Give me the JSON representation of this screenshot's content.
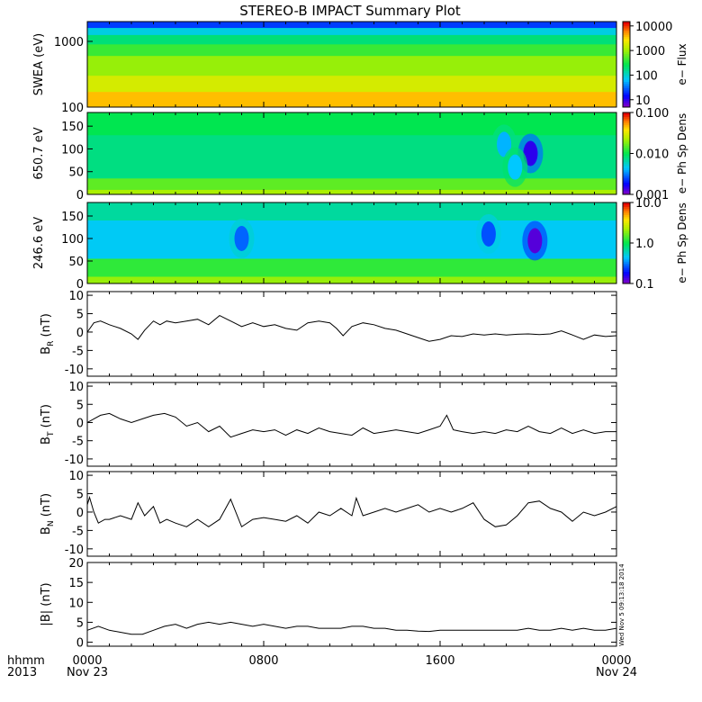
{
  "title": "STEREO-B IMPACT Summary Plot",
  "stamp": "Wed Nov 5 09:13:18 2014",
  "time_axis": {
    "corner_top": "hhmm",
    "corner_bottom": "2013",
    "ticks": [
      {
        "hour": 0,
        "label": "0000",
        "sublabel": "Nov 23"
      },
      {
        "hour": 8,
        "label": "0800",
        "sublabel": ""
      },
      {
        "hour": 16,
        "label": "1600",
        "sublabel": ""
      },
      {
        "hour": 24,
        "label": "0000",
        "sublabel": "Nov 24"
      }
    ],
    "range_hours": [
      0,
      24
    ]
  },
  "chart_data": [
    {
      "type": "heatmap",
      "panel": "swea",
      "ylabel": "SWEA (eV)",
      "y_scale": "log",
      "ylim": [
        100,
        2000
      ],
      "yticks": [
        {
          "v": 100,
          "label": "100"
        },
        {
          "v": 1000,
          "label": "1000"
        }
      ],
      "colorbar": {
        "label": "e− Flux",
        "scale": "log",
        "range": [
          5,
          15000
        ],
        "ticks": [
          {
            "v": 10,
            "label": "10"
          },
          {
            "v": 100,
            "label": "100"
          },
          {
            "v": 1000,
            "label": "1000"
          },
          {
            "v": 10000,
            "label": "10000"
          }
        ]
      },
      "bands": [
        {
          "y_from": 2000,
          "y_to": 1600,
          "level": 0.18
        },
        {
          "y_from": 1600,
          "y_to": 1250,
          "level": 0.35
        },
        {
          "y_from": 1250,
          "y_to": 900,
          "level": 0.46
        },
        {
          "y_from": 900,
          "y_to": 600,
          "level": 0.56
        },
        {
          "y_from": 600,
          "y_to": 300,
          "level": 0.66
        },
        {
          "y_from": 300,
          "y_to": 170,
          "level": 0.74
        },
        {
          "y_from": 170,
          "y_to": 100,
          "level": 0.84
        }
      ]
    },
    {
      "type": "heatmap",
      "panel": "pad_650",
      "ylabel": "650.7 eV",
      "ylim": [
        0,
        180
      ],
      "yticks": [
        {
          "v": 0,
          "label": "0"
        },
        {
          "v": 50,
          "label": "50"
        },
        {
          "v": 100,
          "label": "100"
        },
        {
          "v": 150,
          "label": "150"
        }
      ],
      "colorbar": {
        "label": "e− Ph Sp Dens",
        "scale": "log",
        "range": [
          0.001,
          0.1
        ],
        "ticks": [
          {
            "v": 0.001,
            "label": "0.001"
          },
          {
            "v": 0.01,
            "label": "0.010"
          },
          {
            "v": 0.1,
            "label": "0.100"
          }
        ]
      },
      "bands": [
        {
          "y_from": 180,
          "y_to": 130,
          "level": 0.5
        },
        {
          "y_from": 130,
          "y_to": 35,
          "level": 0.45
        },
        {
          "y_from": 35,
          "y_to": 10,
          "level": 0.6
        },
        {
          "y_from": 10,
          "y_to": 0,
          "level": 0.68
        }
      ],
      "features": [
        {
          "hour": 20.1,
          "y": 90,
          "level": 0.08
        },
        {
          "hour": 18.9,
          "y": 110,
          "level": 0.3
        },
        {
          "hour": 19.4,
          "y": 60,
          "level": 0.32
        }
      ]
    },
    {
      "type": "heatmap",
      "panel": "pad_246",
      "ylabel": "246.6 eV",
      "ylim": [
        0,
        180
      ],
      "yticks": [
        {
          "v": 0,
          "label": "0"
        },
        {
          "v": 50,
          "label": "50"
        },
        {
          "v": 100,
          "label": "100"
        },
        {
          "v": 150,
          "label": "150"
        }
      ],
      "colorbar": {
        "label": "e− Ph Sp Dens",
        "scale": "log",
        "range": [
          0.1,
          10.0
        ],
        "ticks": [
          {
            "v": 0.1,
            "label": "0.1"
          },
          {
            "v": 1.0,
            "label": "1.0"
          },
          {
            "v": 10.0,
            "label": "10.0"
          }
        ]
      },
      "bands": [
        {
          "y_from": 180,
          "y_to": 140,
          "level": 0.42
        },
        {
          "y_from": 140,
          "y_to": 55,
          "level": 0.33
        },
        {
          "y_from": 55,
          "y_to": 15,
          "level": 0.55
        },
        {
          "y_from": 15,
          "y_to": 0,
          "level": 0.66
        }
      ],
      "features": [
        {
          "hour": 20.3,
          "y": 95,
          "level": 0.04
        },
        {
          "hour": 18.2,
          "y": 110,
          "level": 0.2
        },
        {
          "hour": 7.0,
          "y": 100,
          "level": 0.22
        }
      ]
    },
    {
      "type": "line",
      "panel": "br",
      "ylabel": "B",
      "ylabel_sub": "R",
      "ylabel_unit": "(nT)",
      "ylim": [
        -12,
        11
      ],
      "yticks": [
        -10,
        -5,
        0,
        5,
        10
      ],
      "x": [
        0,
        0.3,
        0.6,
        1,
        1.5,
        2,
        2.3,
        2.6,
        3,
        3.3,
        3.6,
        4,
        4.5,
        5,
        5.5,
        6,
        6.5,
        7,
        7.5,
        8,
        8.5,
        9,
        9.5,
        10,
        10.5,
        11,
        11.3,
        11.6,
        12,
        12.5,
        13,
        13.5,
        14,
        14.5,
        15,
        15.5,
        16,
        16.5,
        17,
        17.5,
        18,
        18.5,
        19,
        19.5,
        20,
        20.5,
        21,
        21.5,
        22,
        22.5,
        23,
        23.5,
        24
      ],
      "values": [
        0,
        2.5,
        3,
        2,
        1,
        -0.5,
        -2,
        0.5,
        3,
        2,
        3,
        2.5,
        3,
        3.5,
        2,
        4.5,
        3,
        1.5,
        2.5,
        1.5,
        2,
        1,
        0.5,
        2.5,
        3,
        2.5,
        1,
        -1,
        1.5,
        2.5,
        2,
        1,
        0.5,
        -0.5,
        -1.5,
        -2.5,
        -2,
        -1,
        -1.2,
        -0.5,
        -0.8,
        -0.5,
        -0.8,
        -0.6,
        -0.5,
        -0.7,
        -0.5,
        0.3,
        -0.8,
        -2,
        -0.8,
        -1.2,
        -1
      ]
    },
    {
      "type": "line",
      "panel": "bt",
      "ylabel": "B",
      "ylabel_sub": "T",
      "ylabel_unit": "(nT)",
      "ylim": [
        -12,
        11
      ],
      "yticks": [
        -10,
        -5,
        0,
        5,
        10
      ],
      "x": [
        0,
        0.3,
        0.6,
        1,
        1.5,
        2,
        2.5,
        3,
        3.5,
        4,
        4.5,
        5,
        5.5,
        6,
        6.5,
        7,
        7.5,
        8,
        8.5,
        9,
        9.5,
        10,
        10.5,
        11,
        11.5,
        12,
        12.5,
        13,
        13.5,
        14,
        14.5,
        15,
        15.5,
        16,
        16.3,
        16.6,
        17,
        17.5,
        18,
        18.5,
        19,
        19.5,
        20,
        20.5,
        21,
        21.5,
        22,
        22.5,
        23,
        23.5,
        24
      ],
      "values": [
        0,
        1,
        2,
        2.5,
        1,
        0,
        1,
        2,
        2.5,
        1.5,
        -1,
        0,
        -2.5,
        -1,
        -4,
        -3,
        -2,
        -2.5,
        -2,
        -3.5,
        -2,
        -3,
        -1.5,
        -2.5,
        -3,
        -3.5,
        -1.5,
        -3,
        -2.5,
        -2,
        -2.5,
        -3,
        -2,
        -1,
        2,
        -2,
        -2.5,
        -3,
        -2.5,
        -3,
        -2,
        -2.5,
        -1,
        -2.5,
        -3,
        -1.5,
        -3,
        -2,
        -3,
        -2.5,
        -2.5
      ]
    },
    {
      "type": "line",
      "panel": "bn",
      "ylabel": "B",
      "ylabel_sub": "N",
      "ylabel_unit": "(nT)",
      "ylim": [
        -12,
        11
      ],
      "yticks": [
        -10,
        -5,
        0,
        5,
        10
      ],
      "x": [
        0,
        0.1,
        0.3,
        0.5,
        0.8,
        1,
        1.5,
        2,
        2.3,
        2.6,
        3,
        3.3,
        3.6,
        4,
        4.5,
        5,
        5.5,
        6,
        6.5,
        7,
        7.5,
        8,
        8.5,
        9,
        9.5,
        10,
        10.5,
        11,
        11.5,
        12,
        12.2,
        12.5,
        13,
        13.5,
        14,
        14.5,
        15,
        15.5,
        16,
        16.5,
        17,
        17.5,
        18,
        18.5,
        19,
        19.5,
        20,
        20.5,
        21,
        21.5,
        22,
        22.5,
        23,
        23.5,
        24
      ],
      "values": [
        2,
        4,
        0,
        -3,
        -2,
        -2,
        -1,
        -2,
        2.5,
        -1,
        1.5,
        -3,
        -2,
        -3,
        -4,
        -2,
        -4,
        -2,
        3.5,
        -4,
        -2,
        -1.5,
        -2,
        -2.5,
        -1,
        -3,
        0,
        -1,
        1,
        -1,
        3.8,
        -1,
        0,
        1,
        0,
        1,
        2,
        0,
        1,
        0,
        1,
        2.5,
        -2,
        -4,
        -3.5,
        -1,
        2.5,
        3,
        1,
        0,
        -2.5,
        0,
        -1,
        0,
        1.5
      ]
    },
    {
      "type": "line",
      "panel": "bmag",
      "ylabel": "|B| (nT)",
      "ylim": [
        -1,
        20
      ],
      "yticks": [
        0,
        5,
        10,
        15,
        20
      ],
      "x": [
        0,
        0.5,
        1,
        1.5,
        2,
        2.5,
        3,
        3.5,
        4,
        4.5,
        5,
        5.5,
        6,
        6.5,
        7,
        7.5,
        8,
        8.5,
        9,
        9.5,
        10,
        10.5,
        11,
        11.5,
        12,
        12.5,
        13,
        13.5,
        14,
        14.5,
        15,
        15.5,
        16,
        16.5,
        17,
        17.5,
        18,
        18.5,
        19,
        19.5,
        20,
        20.5,
        21,
        21.5,
        22,
        22.5,
        23,
        23.5,
        24
      ],
      "values": [
        3,
        4,
        3,
        2.5,
        2,
        2,
        3,
        4,
        4.5,
        3.5,
        4.5,
        5,
        4.5,
        5,
        4.5,
        4,
        4.5,
        4,
        3.5,
        4,
        4,
        3.5,
        3.5,
        3.5,
        4,
        4,
        3.5,
        3.5,
        3,
        3,
        2.8,
        2.7,
        3,
        3,
        3,
        3,
        3,
        3,
        3,
        3,
        3.5,
        3,
        3,
        3.5,
        3,
        3.5,
        3,
        3,
        3.5
      ]
    }
  ]
}
